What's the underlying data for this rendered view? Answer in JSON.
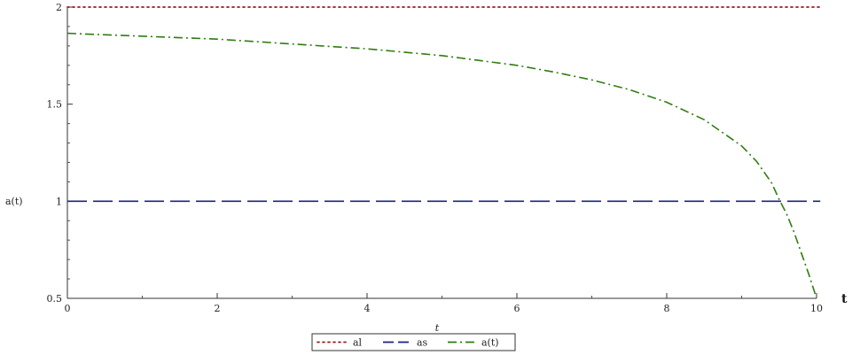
{
  "chart_data": {
    "type": "line",
    "title": "",
    "xlabel": "t",
    "ylabel": "a(t)",
    "corner_label": "t",
    "xlim": [
      0,
      10
    ],
    "ylim": [
      0.5,
      2
    ],
    "x_ticks": [
      "0",
      "2",
      "4",
      "6",
      "8",
      "10"
    ],
    "y_ticks": [
      "0.5",
      "1",
      "1.5",
      "2"
    ],
    "x_tick_values": [
      0,
      2,
      4,
      6,
      8,
      10
    ],
    "y_tick_values": [
      0.5,
      1,
      1.5,
      2
    ],
    "x_minor_step": 1,
    "y_minor_step": 0.1,
    "grid": false,
    "legend_position": "bottom-center",
    "series": [
      {
        "name": "al",
        "color": "#a31a1a",
        "style": "dotted",
        "x": [
          0,
          10.05
        ],
        "y": [
          2,
          2
        ]
      },
      {
        "name": "as",
        "color": "#1a237e",
        "style": "dashed",
        "x": [
          0,
          10.05
        ],
        "y": [
          1,
          1
        ]
      },
      {
        "name": "a(t)",
        "color": "#2e7d11",
        "style": "dashdot",
        "x": [
          0,
          1,
          2,
          3,
          4,
          5,
          5.5,
          6,
          6.5,
          7,
          7.5,
          8,
          8.5,
          9,
          9.2,
          9.4,
          9.5,
          9.6,
          9.7,
          9.8,
          9.9,
          10
        ],
        "y": [
          1.865,
          1.85,
          1.835,
          1.81,
          1.785,
          1.75,
          1.725,
          1.7,
          1.665,
          1.625,
          1.575,
          1.51,
          1.42,
          1.285,
          1.205,
          1.095,
          1.01,
          0.935,
          0.84,
          0.73,
          0.62,
          0.5
        ]
      }
    ]
  }
}
